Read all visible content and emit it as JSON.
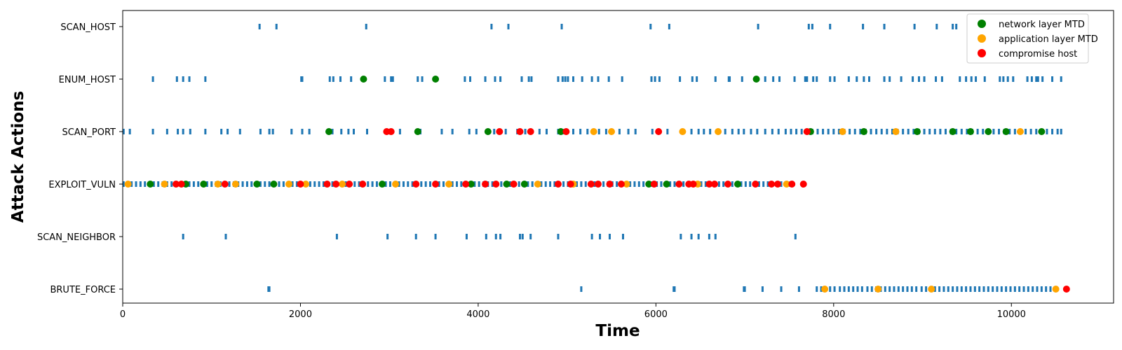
{
  "chart_data": {
    "type": "scatter",
    "xlabel": "Time",
    "ylabel": "Attack Actions",
    "xlim": [
      0,
      11150
    ],
    "x_ticks": [
      0,
      2000,
      4000,
      6000,
      8000,
      10000
    ],
    "categories": [
      "SCAN_HOST",
      "ENUM_HOST",
      "SCAN_PORT",
      "EXPLOIT_VULN",
      "SCAN_NEIGHBOR",
      "BRUTE_FORCE"
    ],
    "grid": false,
    "legend_position": "top-right",
    "action_series": {
      "color": "#1f77b4",
      "marker": "tick",
      "points": {
        "SCAN_HOST": [
          1540,
          1730,
          2740,
          4150,
          4340,
          4940,
          5940,
          6150,
          7150,
          7720,
          7760,
          7960,
          8330,
          8570,
          8910,
          9160,
          9340,
          9380
        ],
        "ENUM_HOST": [
          340,
          610,
          680,
          750,
          930,
          2010,
          2020,
          2330,
          2370,
          2450,
          2570,
          2950,
          3020,
          3040,
          3320,
          3370,
          3850,
          3910,
          4080,
          4190,
          4250,
          4490,
          4570,
          4600,
          4900,
          4950,
          4980,
          5010,
          5070,
          5170,
          5280,
          5350,
          5470,
          5620,
          5950,
          5990,
          6040,
          6270,
          6410,
          6460,
          6670,
          6820,
          6830,
          6970,
          7130,
          7230,
          7320,
          7390,
          7560,
          7680,
          7700,
          7770,
          7810,
          7960,
          8010,
          8170,
          8260,
          8340,
          8400,
          8570,
          8630,
          8760,
          8890,
          8960,
          9020,
          9150,
          9220,
          9420,
          9490,
          9550,
          9600,
          9700,
          9870,
          9910,
          9960,
          10020,
          10180,
          10230,
          10280,
          10300,
          10350,
          10460,
          10560
        ],
        "SCAN_PORT": [
          10,
          80,
          340,
          500,
          620,
          680,
          760,
          930,
          1110,
          1180,
          1320,
          1550,
          1650,
          1690,
          1900,
          2020,
          2100,
          2330,
          2360,
          2460,
          2540,
          2600,
          2750,
          3000,
          3120,
          3320,
          3350,
          3590,
          3710,
          3900,
          3980,
          4110,
          4180,
          4240,
          4310,
          4440,
          4530,
          4690,
          4770,
          4900,
          4970,
          5070,
          5150,
          5230,
          5310,
          5360,
          5440,
          5500,
          5590,
          5690,
          5770,
          5960,
          6040,
          6130,
          6290,
          6400,
          6480,
          6540,
          6610,
          6700,
          6780,
          6860,
          6930,
          6990,
          7070,
          7140,
          7230,
          7310,
          7380,
          7460,
          7520,
          7580,
          7640,
          7700,
          7760,
          7820,
          7880,
          7940,
          8000,
          8060,
          8120,
          8180,
          8240,
          8300,
          8360,
          8420,
          8480,
          8540,
          8600,
          8660,
          8720,
          8780,
          8840,
          8900,
          8960,
          9020,
          9080,
          9140,
          9200,
          9260,
          9320,
          9380,
          9440,
          9500,
          9560,
          9620,
          9680,
          9740,
          9800,
          9860,
          9920,
          9980,
          10040,
          10100,
          10160,
          10220,
          10280,
          10340,
          10400,
          10460,
          10520,
          10560
        ],
        "EXPLOIT_VULN": [
          10,
          50,
          100,
          150,
          200,
          250,
          300,
          350,
          400,
          450,
          500,
          550,
          600,
          650,
          700,
          750,
          800,
          850,
          900,
          950,
          1000,
          1050,
          1100,
          1150,
          1200,
          1250,
          1300,
          1350,
          1400,
          1450,
          1500,
          1550,
          1600,
          1650,
          1700,
          1760,
          1810,
          1860,
          1910,
          1960,
          2010,
          2060,
          2110,
          2160,
          2210,
          2260,
          2310,
          2360,
          2410,
          2460,
          2510,
          2560,
          2610,
          2660,
          2710,
          2760,
          2810,
          2860,
          2910,
          2960,
          3010,
          3060,
          3110,
          3160,
          3210,
          3260,
          3310,
          3360,
          3410,
          3460,
          3510,
          3560,
          3610,
          3660,
          3710,
          3760,
          3810,
          3860,
          3910,
          3960,
          4010,
          4060,
          4110,
          4160,
          4210,
          4260,
          4310,
          4360,
          4410,
          4460,
          4510,
          4560,
          4610,
          4660,
          4710,
          4760,
          4810,
          4860,
          4910,
          4960,
          5010,
          5060,
          5110,
          5160,
          5210,
          5260,
          5310,
          5360,
          5410,
          5460,
          5510,
          5560,
          5610,
          5660,
          5710,
          5760,
          5810,
          5860,
          5910,
          5960,
          6010,
          6060,
          6110,
          6160,
          6210,
          6260,
          6310,
          6360,
          6410,
          6460,
          6510,
          6560,
          6610,
          6660,
          6710,
          6760,
          6810,
          6860,
          6910,
          6960,
          7010,
          7060,
          7110,
          7160,
          7210,
          7260,
          7310,
          7360,
          7410,
          7460,
          7510
        ],
        "SCAN_NEIGHBOR": [
          680,
          1160,
          2410,
          2980,
          3300,
          3520,
          3870,
          4090,
          4200,
          4250,
          4470,
          4500,
          4590,
          4900,
          5280,
          5370,
          5480,
          5630,
          6280,
          6400,
          6480,
          6600,
          6670,
          7570
        ],
        "BRUTE_FORCE": [
          1640,
          1650,
          5160,
          6200,
          6210,
          6990,
          7000,
          7200,
          7410,
          7610,
          7810,
          7860,
          7900,
          7960,
          8010,
          8070,
          8120,
          8170,
          8220,
          8270,
          8320,
          8380,
          8430,
          8480,
          8530,
          8580,
          8630,
          8680,
          8730,
          8780,
          8830,
          8880,
          8930,
          8990,
          9040,
          9090,
          9140,
          9190,
          9240,
          9290,
          9340,
          9390,
          9440,
          9490,
          9540,
          9590,
          9640,
          9690,
          9740,
          9790,
          9840,
          9890,
          9940,
          9990,
          10040,
          10090,
          10140,
          10190,
          10240,
          10290,
          10340,
          10390,
          10440,
          10490
        ]
      }
    },
    "series": [
      {
        "name": "network layer MTD",
        "color": "#008000",
        "points": [
          {
            "x": 2710,
            "y": "ENUM_HOST"
          },
          {
            "x": 3520,
            "y": "ENUM_HOST"
          },
          {
            "x": 7130,
            "y": "ENUM_HOST"
          },
          {
            "x": 2320,
            "y": "SCAN_PORT"
          },
          {
            "x": 3320,
            "y": "SCAN_PORT"
          },
          {
            "x": 4110,
            "y": "SCAN_PORT"
          },
          {
            "x": 4930,
            "y": "SCAN_PORT"
          },
          {
            "x": 7740,
            "y": "SCAN_PORT"
          },
          {
            "x": 8340,
            "y": "SCAN_PORT"
          },
          {
            "x": 8940,
            "y": "SCAN_PORT"
          },
          {
            "x": 9340,
            "y": "SCAN_PORT"
          },
          {
            "x": 9540,
            "y": "SCAN_PORT"
          },
          {
            "x": 9740,
            "y": "SCAN_PORT"
          },
          {
            "x": 9940,
            "y": "SCAN_PORT"
          },
          {
            "x": 10340,
            "y": "SCAN_PORT"
          },
          {
            "x": 310,
            "y": "EXPLOIT_VULN"
          },
          {
            "x": 710,
            "y": "EXPLOIT_VULN"
          },
          {
            "x": 910,
            "y": "EXPLOIT_VULN"
          },
          {
            "x": 1510,
            "y": "EXPLOIT_VULN"
          },
          {
            "x": 1700,
            "y": "EXPLOIT_VULN"
          },
          {
            "x": 2920,
            "y": "EXPLOIT_VULN"
          },
          {
            "x": 3920,
            "y": "EXPLOIT_VULN"
          },
          {
            "x": 4320,
            "y": "EXPLOIT_VULN"
          },
          {
            "x": 4520,
            "y": "EXPLOIT_VULN"
          },
          {
            "x": 5920,
            "y": "EXPLOIT_VULN"
          },
          {
            "x": 6120,
            "y": "EXPLOIT_VULN"
          },
          {
            "x": 6920,
            "y": "EXPLOIT_VULN"
          }
        ]
      },
      {
        "name": "application layer MTD",
        "color": "#ffa500",
        "points": [
          {
            "x": 5300,
            "y": "SCAN_PORT"
          },
          {
            "x": 5500,
            "y": "SCAN_PORT"
          },
          {
            "x": 6300,
            "y": "SCAN_PORT"
          },
          {
            "x": 6700,
            "y": "SCAN_PORT"
          },
          {
            "x": 8100,
            "y": "SCAN_PORT"
          },
          {
            "x": 8700,
            "y": "SCAN_PORT"
          },
          {
            "x": 10100,
            "y": "SCAN_PORT"
          },
          {
            "x": 60,
            "y": "EXPLOIT_VULN"
          },
          {
            "x": 470,
            "y": "EXPLOIT_VULN"
          },
          {
            "x": 1070,
            "y": "EXPLOIT_VULN"
          },
          {
            "x": 1270,
            "y": "EXPLOIT_VULN"
          },
          {
            "x": 1870,
            "y": "EXPLOIT_VULN"
          },
          {
            "x": 2060,
            "y": "EXPLOIT_VULN"
          },
          {
            "x": 2470,
            "y": "EXPLOIT_VULN"
          },
          {
            "x": 3070,
            "y": "EXPLOIT_VULN"
          },
          {
            "x": 3670,
            "y": "EXPLOIT_VULN"
          },
          {
            "x": 4670,
            "y": "EXPLOIT_VULN"
          },
          {
            "x": 5070,
            "y": "EXPLOIT_VULN"
          },
          {
            "x": 5670,
            "y": "EXPLOIT_VULN"
          },
          {
            "x": 6470,
            "y": "EXPLOIT_VULN"
          },
          {
            "x": 7470,
            "y": "EXPLOIT_VULN"
          },
          {
            "x": 7900,
            "y": "BRUTE_FORCE"
          },
          {
            "x": 8500,
            "y": "BRUTE_FORCE"
          },
          {
            "x": 9100,
            "y": "BRUTE_FORCE"
          },
          {
            "x": 10500,
            "y": "BRUTE_FORCE"
          }
        ]
      },
      {
        "name": "compromise host",
        "color": "#ff0000",
        "points": [
          {
            "x": 2970,
            "y": "SCAN_PORT"
          },
          {
            "x": 3020,
            "y": "SCAN_PORT"
          },
          {
            "x": 4240,
            "y": "SCAN_PORT"
          },
          {
            "x": 4470,
            "y": "SCAN_PORT"
          },
          {
            "x": 4590,
            "y": "SCAN_PORT"
          },
          {
            "x": 4990,
            "y": "SCAN_PORT"
          },
          {
            "x": 6030,
            "y": "SCAN_PORT"
          },
          {
            "x": 7700,
            "y": "SCAN_PORT"
          },
          {
            "x": 600,
            "y": "EXPLOIT_VULN"
          },
          {
            "x": 660,
            "y": "EXPLOIT_VULN"
          },
          {
            "x": 1150,
            "y": "EXPLOIT_VULN"
          },
          {
            "x": 2000,
            "y": "EXPLOIT_VULN"
          },
          {
            "x": 2300,
            "y": "EXPLOIT_VULN"
          },
          {
            "x": 2400,
            "y": "EXPLOIT_VULN"
          },
          {
            "x": 2550,
            "y": "EXPLOIT_VULN"
          },
          {
            "x": 2700,
            "y": "EXPLOIT_VULN"
          },
          {
            "x": 3300,
            "y": "EXPLOIT_VULN"
          },
          {
            "x": 3520,
            "y": "EXPLOIT_VULN"
          },
          {
            "x": 3860,
            "y": "EXPLOIT_VULN"
          },
          {
            "x": 4080,
            "y": "EXPLOIT_VULN"
          },
          {
            "x": 4200,
            "y": "EXPLOIT_VULN"
          },
          {
            "x": 4400,
            "y": "EXPLOIT_VULN"
          },
          {
            "x": 4900,
            "y": "EXPLOIT_VULN"
          },
          {
            "x": 5040,
            "y": "EXPLOIT_VULN"
          },
          {
            "x": 5270,
            "y": "EXPLOIT_VULN"
          },
          {
            "x": 5350,
            "y": "EXPLOIT_VULN"
          },
          {
            "x": 5480,
            "y": "EXPLOIT_VULN"
          },
          {
            "x": 5610,
            "y": "EXPLOIT_VULN"
          },
          {
            "x": 5980,
            "y": "EXPLOIT_VULN"
          },
          {
            "x": 6260,
            "y": "EXPLOIT_VULN"
          },
          {
            "x": 6370,
            "y": "EXPLOIT_VULN"
          },
          {
            "x": 6420,
            "y": "EXPLOIT_VULN"
          },
          {
            "x": 6600,
            "y": "EXPLOIT_VULN"
          },
          {
            "x": 6660,
            "y": "EXPLOIT_VULN"
          },
          {
            "x": 6810,
            "y": "EXPLOIT_VULN"
          },
          {
            "x": 7120,
            "y": "EXPLOIT_VULN"
          },
          {
            "x": 7300,
            "y": "EXPLOIT_VULN"
          },
          {
            "x": 7370,
            "y": "EXPLOIT_VULN"
          },
          {
            "x": 7530,
            "y": "EXPLOIT_VULN"
          },
          {
            "x": 7660,
            "y": "EXPLOIT_VULN"
          },
          {
            "x": 10620,
            "y": "BRUTE_FORCE"
          }
        ]
      }
    ]
  }
}
